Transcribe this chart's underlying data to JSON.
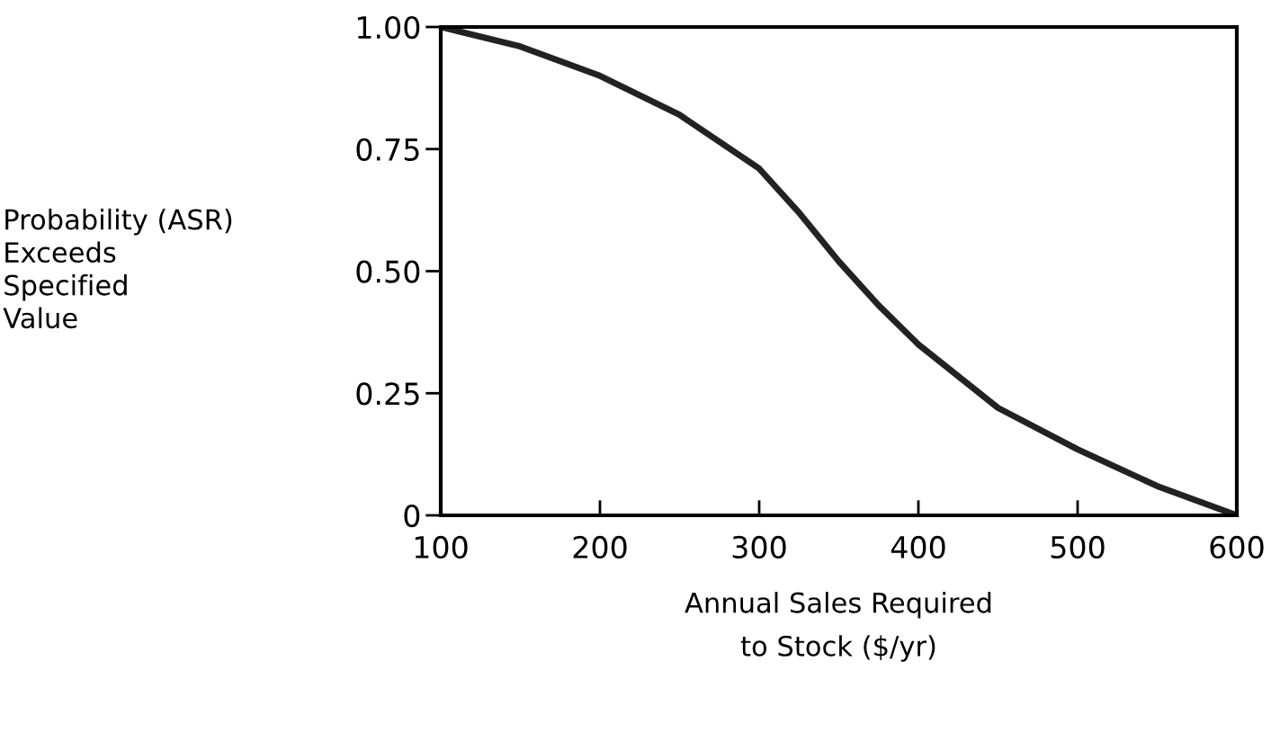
{
  "chart_data": {
    "type": "line",
    "xlabel": "Annual Sales Required\nto Stock ($/yr)",
    "ylabel": "Probability (ASR)\nExceeds\nSpecified\nValue",
    "x": [
      100,
      150,
      200,
      250,
      300,
      325,
      350,
      375,
      400,
      450,
      500,
      550,
      600
    ],
    "series": [
      {
        "color": "#222222",
        "values": [
          1.0,
          0.96,
          0.9,
          0.82,
          0.71,
          0.62,
          0.52,
          0.43,
          0.35,
          0.22,
          0.135,
          0.06,
          0.0
        ]
      }
    ],
    "xlim": [
      100,
      600
    ],
    "ylim": [
      0,
      1.0
    ],
    "xticks": [
      100,
      200,
      300,
      400,
      500,
      600
    ],
    "yticks": [
      {
        "value": 0,
        "label": "0"
      },
      {
        "value": 0.25,
        "label": "0.25"
      },
      {
        "value": 0.5,
        "label": "0.50"
      },
      {
        "value": 0.75,
        "label": "0.75"
      },
      {
        "value": 1.0,
        "label": "1.00"
      }
    ],
    "grid": false,
    "legend": false,
    "marker": "none",
    "line_style": "solid"
  }
}
